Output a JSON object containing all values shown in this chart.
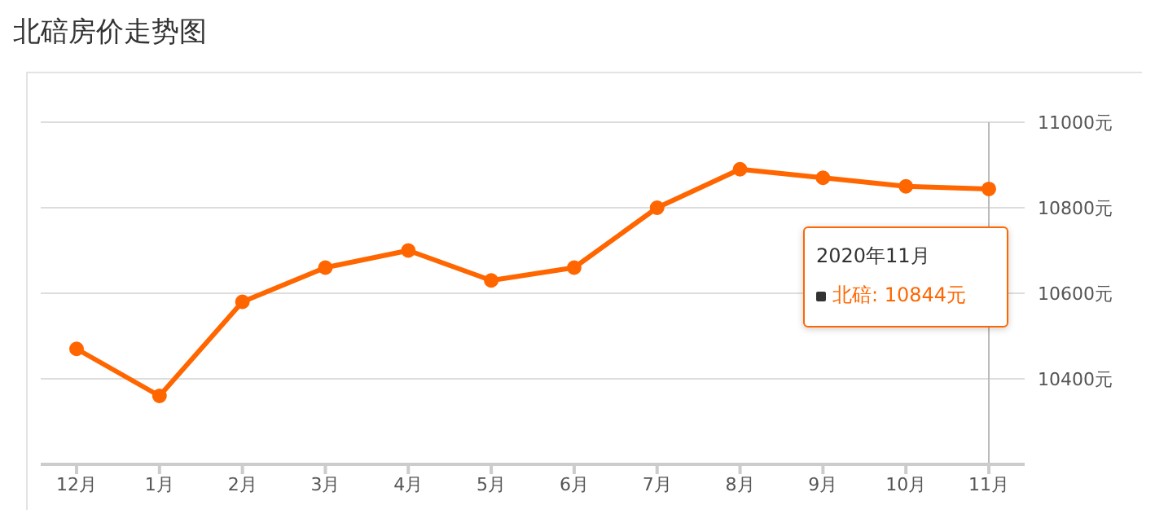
{
  "chart_data": {
    "type": "line",
    "title": "北碚房价走势图",
    "categories": [
      "12月",
      "1月",
      "2月",
      "3月",
      "4月",
      "5月",
      "6月",
      "7月",
      "8月",
      "9月",
      "10月",
      "11月"
    ],
    "series": [
      {
        "color": "#ff6600",
        "values": [
          10470,
          10360,
          10580,
          10660,
          10700,
          10630,
          10660,
          10800,
          10890,
          10870,
          10850,
          10844
        ]
      }
    ],
    "ylim": [
      10200,
      11000
    ],
    "yticks": [
      {
        "value": 10200,
        "label": null
      },
      {
        "value": 10400,
        "label": "10400元"
      },
      {
        "value": 10600,
        "label": "10600元"
      },
      {
        "value": 10800,
        "label": "10800元"
      },
      {
        "value": 11000,
        "label": "11000元"
      }
    ],
    "grid": "y",
    "marker": "circle",
    "line_style": "solid",
    "legend": false,
    "ref_lines": [
      {
        "axis": "x",
        "value": "11月",
        "color": "#bbbbbb"
      }
    ],
    "annotations": [
      "2020年11月",
      "北碚:  10844元"
    ]
  }
}
